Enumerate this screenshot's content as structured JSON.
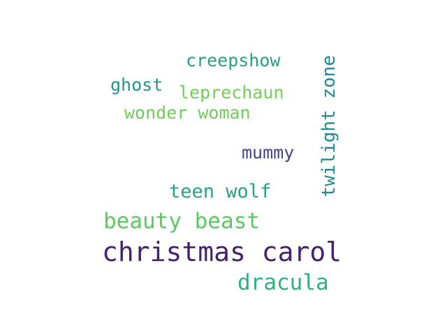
{
  "words": [
    {
      "text": "christmas carol",
      "color": "#45226e"
    },
    {
      "text": "dracula",
      "color": "#2fb17d"
    },
    {
      "text": "beauty beast",
      "color": "#5cc863"
    },
    {
      "text": "teen wolf",
      "color": "#26a284"
    },
    {
      "text": "mummy",
      "color": "#404387"
    },
    {
      "text": "wonder woman",
      "color": "#6ece58"
    },
    {
      "text": "leprechaun",
      "color": "#73d056"
    },
    {
      "text": "ghost",
      "color": "#20958a"
    },
    {
      "text": "creepshow",
      "color": "#25a085"
    },
    {
      "text": "twilight zone",
      "color": "#1f8b8c"
    }
  ]
}
